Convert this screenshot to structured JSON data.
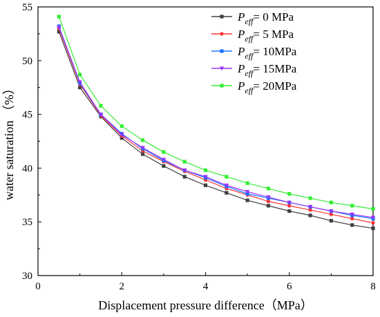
{
  "chart_data": {
    "type": "line",
    "title": "",
    "xlabel": "Displacement pressure difference（MPa）",
    "ylabel": "water saturation （%）",
    "xlim": [
      0,
      8
    ],
    "ylim": [
      30,
      55
    ],
    "xticks": [
      0,
      2,
      4,
      6,
      8
    ],
    "yticks": [
      30,
      35,
      40,
      45,
      50,
      55
    ],
    "grid": false,
    "legend_position": "top-right",
    "x": [
      0.5,
      1.0,
      1.5,
      2.0,
      2.5,
      3.0,
      3.5,
      4.0,
      4.5,
      5.0,
      5.5,
      6.0,
      6.5,
      7.0,
      7.5,
      8.0
    ],
    "series": [
      {
        "name": "Peff= 0 MPa",
        "symbol": "P",
        "subscript": "eff",
        "value_text": "= 0 MPa",
        "color": "#404040",
        "marker": "square",
        "values": [
          52.7,
          47.5,
          44.8,
          42.8,
          41.3,
          40.2,
          39.2,
          38.4,
          37.7,
          37.0,
          36.5,
          36.0,
          35.6,
          35.1,
          34.7,
          34.4
        ]
      },
      {
        "name": "Peff= 5 MPa",
        "symbol": "P",
        "subscript": "eff",
        "value_text": "= 5 MPa",
        "color": "#ff3333",
        "marker": "circle",
        "values": [
          53.0,
          47.8,
          44.9,
          43.0,
          41.6,
          40.6,
          39.7,
          38.9,
          38.1,
          37.5,
          36.9,
          36.5,
          36.1,
          35.7,
          35.3,
          34.9
        ]
      },
      {
        "name": "Peff= 10MPa",
        "symbol": "P",
        "subscript": "eff",
        "value_text": "= 10MPa",
        "color": "#1a75ff",
        "marker": "square",
        "values": [
          53.2,
          47.9,
          45.0,
          43.2,
          41.8,
          40.7,
          39.8,
          39.1,
          38.3,
          37.6,
          37.2,
          36.8,
          36.4,
          36.0,
          35.6,
          35.3
        ]
      },
      {
        "name": "Peff= 15MPa",
        "symbol": "P",
        "subscript": "eff",
        "value_text": "= 15MPa",
        "color": "#9933ff",
        "marker": "triangle-down",
        "values": [
          53.1,
          48.0,
          45.0,
          43.1,
          41.9,
          40.8,
          39.8,
          39.2,
          38.4,
          37.8,
          37.3,
          36.8,
          36.4,
          36.0,
          35.7,
          35.4
        ]
      },
      {
        "name": "Peff= 20MPa",
        "symbol": "P",
        "subscript": "eff",
        "value_text": "= 20MPa",
        "color": "#33ee33",
        "marker": "square",
        "values": [
          54.1,
          48.7,
          45.8,
          43.9,
          42.6,
          41.5,
          40.6,
          39.8,
          39.2,
          38.6,
          38.1,
          37.6,
          37.2,
          36.8,
          36.5,
          36.2
        ]
      }
    ]
  }
}
